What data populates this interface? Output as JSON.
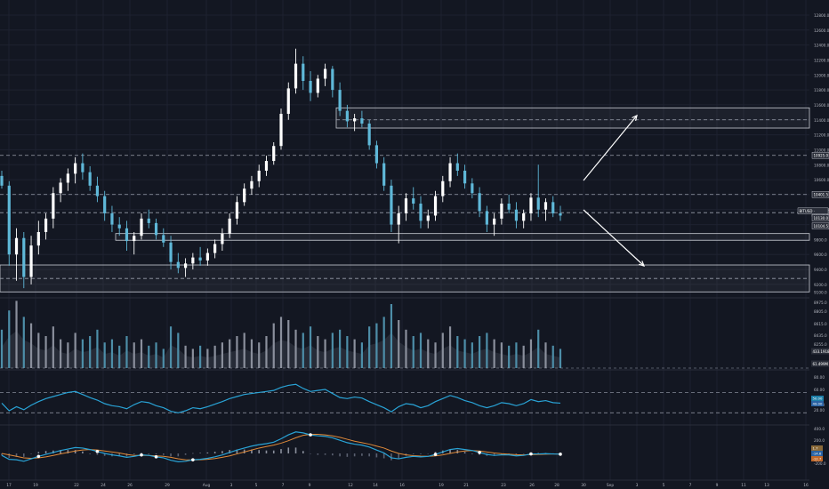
{
  "colors": {
    "background": "#131722",
    "grid": "#1e2230",
    "axis_text": "#b2b5be",
    "candle_up": "#ffffff",
    "candle_down": "#5fb8d8",
    "volume": "#6a6f7c",
    "volume_area": "#3a3f4c",
    "rsi_line": "#29a3d6",
    "macd_line": "#29a3d6",
    "signal_line": "#e08a3a",
    "zone_border": "#c8cbd3",
    "dashed": "#9aa0ad",
    "arrow": "#ffffff",
    "price_tag_bg": "#2a2e39"
  },
  "chart_data": [
    {
      "type": "candlestick",
      "pane": "price",
      "x_ticks": [
        "17",
        "19",
        "22",
        "24",
        "26",
        "29",
        "Aug",
        "3",
        "5",
        "7",
        "9",
        "12",
        "14",
        "16",
        "19",
        "21",
        "23",
        "26",
        "28",
        "30",
        "Sep",
        "3",
        "5",
        "7",
        "9",
        "11",
        "13",
        "16"
      ],
      "y_ticks": [
        12800.0,
        12600.0,
        12400.0,
        12200.0,
        12000.0,
        11800.0,
        11600.0,
        11400.0,
        11200.0,
        11000.0,
        10800.0,
        10600.0,
        10400.0,
        10200.0,
        10000.0,
        9800.0,
        9600.0,
        9400.0,
        9200.0,
        9100.0
      ],
      "ylim": [
        9080,
        12930
      ],
      "candles_ohlc": [
        [
          10650,
          10720,
          10480,
          10520
        ],
        [
          10520,
          10580,
          9450,
          9600
        ],
        [
          9600,
          9950,
          9250,
          9820
        ],
        [
          9820,
          9900,
          9150,
          9300
        ],
        [
          9300,
          9850,
          9200,
          9720
        ],
        [
          9720,
          10050,
          9600,
          9900
        ],
        [
          9900,
          10150,
          9800,
          10080
        ],
        [
          10080,
          10500,
          9950,
          10420
        ],
        [
          10420,
          10620,
          10300,
          10560
        ],
        [
          10560,
          10750,
          10450,
          10680
        ],
        [
          10680,
          10900,
          10550,
          10820
        ],
        [
          10820,
          10950,
          10600,
          10700
        ],
        [
          10700,
          10780,
          10450,
          10520
        ],
        [
          10520,
          10640,
          10300,
          10380
        ],
        [
          10380,
          10450,
          10050,
          10150
        ],
        [
          10150,
          10250,
          9900,
          10000
        ],
        [
          10000,
          10100,
          9850,
          9950
        ],
        [
          9950,
          10050,
          9650,
          9780
        ],
        [
          9780,
          9900,
          9600,
          9850
        ],
        [
          9850,
          10150,
          9800,
          10080
        ],
        [
          10080,
          10200,
          9950,
          10020
        ],
        [
          10020,
          10080,
          9800,
          9860
        ],
        [
          9860,
          9950,
          9700,
          9760
        ],
        [
          9760,
          9850,
          9400,
          9500
        ],
        [
          9500,
          9620,
          9350,
          9420
        ],
        [
          9420,
          9550,
          9300,
          9480
        ],
        [
          9480,
          9620,
          9400,
          9560
        ],
        [
          9560,
          9700,
          9450,
          9520
        ],
        [
          9520,
          9680,
          9450,
          9620
        ],
        [
          9620,
          9800,
          9550,
          9740
        ],
        [
          9740,
          9950,
          9650,
          9880
        ],
        [
          9880,
          10150,
          9820,
          10080
        ],
        [
          10080,
          10380,
          10000,
          10300
        ],
        [
          10300,
          10550,
          10250,
          10480
        ],
        [
          10480,
          10650,
          10400,
          10580
        ],
        [
          10580,
          10800,
          10500,
          10720
        ],
        [
          10720,
          10920,
          10650,
          10850
        ],
        [
          10850,
          11100,
          10800,
          11050
        ],
        [
          11050,
          11550,
          11000,
          11480
        ],
        [
          11480,
          11900,
          11400,
          11820
        ],
        [
          11820,
          12350,
          11750,
          12150
        ],
        [
          12150,
          12250,
          11800,
          11920
        ],
        [
          11920,
          12050,
          11650,
          11760
        ],
        [
          11760,
          12000,
          11700,
          11950
        ],
        [
          11950,
          12150,
          11850,
          12080
        ],
        [
          12080,
          12120,
          11700,
          11800
        ],
        [
          11800,
          11900,
          11450,
          11520
        ],
        [
          11520,
          11600,
          11300,
          11380
        ],
        [
          11380,
          11480,
          11250,
          11420
        ],
        [
          11420,
          11520,
          11300,
          11350
        ],
        [
          11350,
          11400,
          11000,
          11060
        ],
        [
          11060,
          11120,
          10750,
          10820
        ],
        [
          10820,
          10900,
          10450,
          10520
        ],
        [
          10520,
          10600,
          9900,
          10000
        ],
        [
          10000,
          10250,
          9750,
          10150
        ],
        [
          10150,
          10420,
          10050,
          10350
        ],
        [
          10350,
          10500,
          10200,
          10280
        ],
        [
          10280,
          10380,
          9950,
          10050
        ],
        [
          10050,
          10200,
          9950,
          10120
        ],
        [
          10120,
          10450,
          10050,
          10380
        ],
        [
          10380,
          10650,
          10300,
          10580
        ],
        [
          10580,
          10900,
          10500,
          10820
        ],
        [
          10820,
          10950,
          10650,
          10720
        ],
        [
          10720,
          10800,
          10480,
          10550
        ],
        [
          10550,
          10620,
          10350,
          10420
        ],
        [
          10420,
          10500,
          10100,
          10180
        ],
        [
          10180,
          10250,
          9900,
          10000
        ],
        [
          10000,
          10150,
          9850,
          10080
        ],
        [
          10080,
          10350,
          10000,
          10280
        ],
        [
          10280,
          10400,
          10150,
          10200
        ],
        [
          10200,
          10300,
          9950,
          10050
        ],
        [
          10050,
          10200,
          9950,
          10150
        ],
        [
          10150,
          10420,
          10050,
          10360
        ],
        [
          10360,
          10800,
          10100,
          10200
        ],
        [
          10200,
          10350,
          10050,
          10300
        ],
        [
          10300,
          10380,
          10100,
          10150
        ],
        [
          10150,
          10250,
          10050,
          10120
        ]
      ],
      "volumes": [
        1.2,
        1.8,
        2.1,
        1.6,
        1.4,
        1.1,
        1.0,
        1.3,
        0.9,
        0.8,
        1.1,
        0.9,
        1.0,
        1.2,
        0.8,
        0.9,
        0.7,
        1.0,
        0.8,
        0.9,
        0.7,
        0.8,
        0.6,
        1.3,
        1.1,
        0.7,
        0.6,
        0.7,
        0.6,
        0.7,
        0.8,
        0.9,
        1.0,
        1.1,
        0.9,
        0.8,
        1.0,
        1.4,
        1.6,
        1.5,
        1.2,
        1.1,
        1.3,
        1.0,
        0.9,
        1.1,
        1.2,
        1.0,
        0.9,
        0.8,
        1.3,
        1.4,
        1.6,
        2.0,
        1.5,
        1.2,
        1.0,
        1.1,
        0.9,
        0.8,
        1.1,
        1.3,
        1.0,
        0.9,
        0.8,
        1.0,
        1.1,
        0.9,
        0.8,
        0.7,
        0.8,
        0.7,
        0.9,
        1.2,
        0.8,
        0.7,
        0.6
      ],
      "rsi": [
        49,
        34,
        42,
        36,
        45,
        52,
        58,
        62,
        66,
        70,
        72,
        66,
        60,
        55,
        48,
        44,
        42,
        38,
        46,
        52,
        50,
        44,
        40,
        33,
        30,
        34,
        40,
        38,
        42,
        47,
        52,
        58,
        62,
        66,
        68,
        70,
        72,
        74,
        80,
        84,
        86,
        78,
        72,
        74,
        76,
        68,
        60,
        58,
        61,
        59,
        52,
        46,
        40,
        32,
        42,
        48,
        46,
        40,
        44,
        52,
        58,
        64,
        60,
        54,
        50,
        44,
        40,
        44,
        50,
        48,
        44,
        48,
        56,
        52,
        54,
        50,
        49
      ],
      "macd": [
        -40,
        -120,
        -130,
        -160,
        -110,
        -60,
        -20,
        20,
        60,
        90,
        120,
        110,
        80,
        40,
        0,
        -30,
        -50,
        -80,
        -60,
        -30,
        -40,
        -70,
        -90,
        -140,
        -170,
        -160,
        -130,
        -120,
        -100,
        -70,
        -30,
        20,
        70,
        110,
        150,
        180,
        200,
        230,
        300,
        380,
        440,
        420,
        380,
        360,
        350,
        320,
        270,
        220,
        190,
        170,
        130,
        70,
        10,
        -90,
        -110,
        -80,
        -60,
        -70,
        -60,
        -20,
        30,
        80,
        100,
        80,
        60,
        20,
        -20,
        -40,
        -30,
        -30,
        -50,
        -40,
        -10,
        -10,
        -5,
        -10,
        -15
      ],
      "signal": [
        0,
        -30,
        -60,
        -90,
        -100,
        -90,
        -70,
        -40,
        -10,
        20,
        50,
        70,
        80,
        70,
        50,
        30,
        10,
        -20,
        -40,
        -40,
        -40,
        -50,
        -60,
        -80,
        -110,
        -130,
        -135,
        -130,
        -120,
        -105,
        -80,
        -50,
        -10,
        30,
        70,
        110,
        140,
        170,
        210,
        260,
        320,
        370,
        390,
        390,
        380,
        360,
        330,
        290,
        250,
        220,
        190,
        150,
        110,
        50,
        0,
        -30,
        -45,
        -55,
        -58,
        -50,
        -30,
        0,
        30,
        50,
        60,
        50,
        30,
        10,
        -5,
        -15,
        -25,
        -30,
        -25,
        -20,
        -15,
        -12,
        -12
      ],
      "price_levels": {
        "zone_top": [
          11560,
          11290
        ],
        "level_11400": 11400,
        "level_10925": 10925,
        "level_10402": 10402,
        "level_10159": 10159,
        "zone_mid": [
          9880,
          9790
        ],
        "zone_bottom": [
          9460,
          9100
        ],
        "level_9280": 9280
      },
      "price_tags": [
        {
          "label": "10925.0",
          "value": 10925
        },
        {
          "label": "10401.5",
          "value": 10402
        },
        {
          "label": "10150.0",
          "value": 10150
        },
        {
          "label": "BITUSD ·",
          "value": 10110
        },
        {
          "label": "10130.0",
          "value": 10090
        },
        {
          "label": "10104.5",
          "value": 10030
        }
      ],
      "volume_ticks": [
        "8975.0",
        "8805.0",
        "8615.0",
        "8435.0",
        "8255.0"
      ],
      "volume_tags": [
        {
          "label": "433.1918K"
        },
        {
          "label": "61.499M"
        }
      ],
      "rsi_ticks": [
        "80.00",
        "60.00",
        "40.00",
        "20.00"
      ],
      "rsi_tags": [
        {
          "label": "50.00"
        },
        {
          "label": "49.00"
        }
      ],
      "macd_ticks": [
        "400.0",
        "200.0",
        "0.0",
        "-200.0"
      ],
      "macd_tags": [
        {
          "label": "1.7"
        },
        {
          "label": "-14.6"
        },
        {
          "label": "-12.7"
        }
      ]
    }
  ]
}
